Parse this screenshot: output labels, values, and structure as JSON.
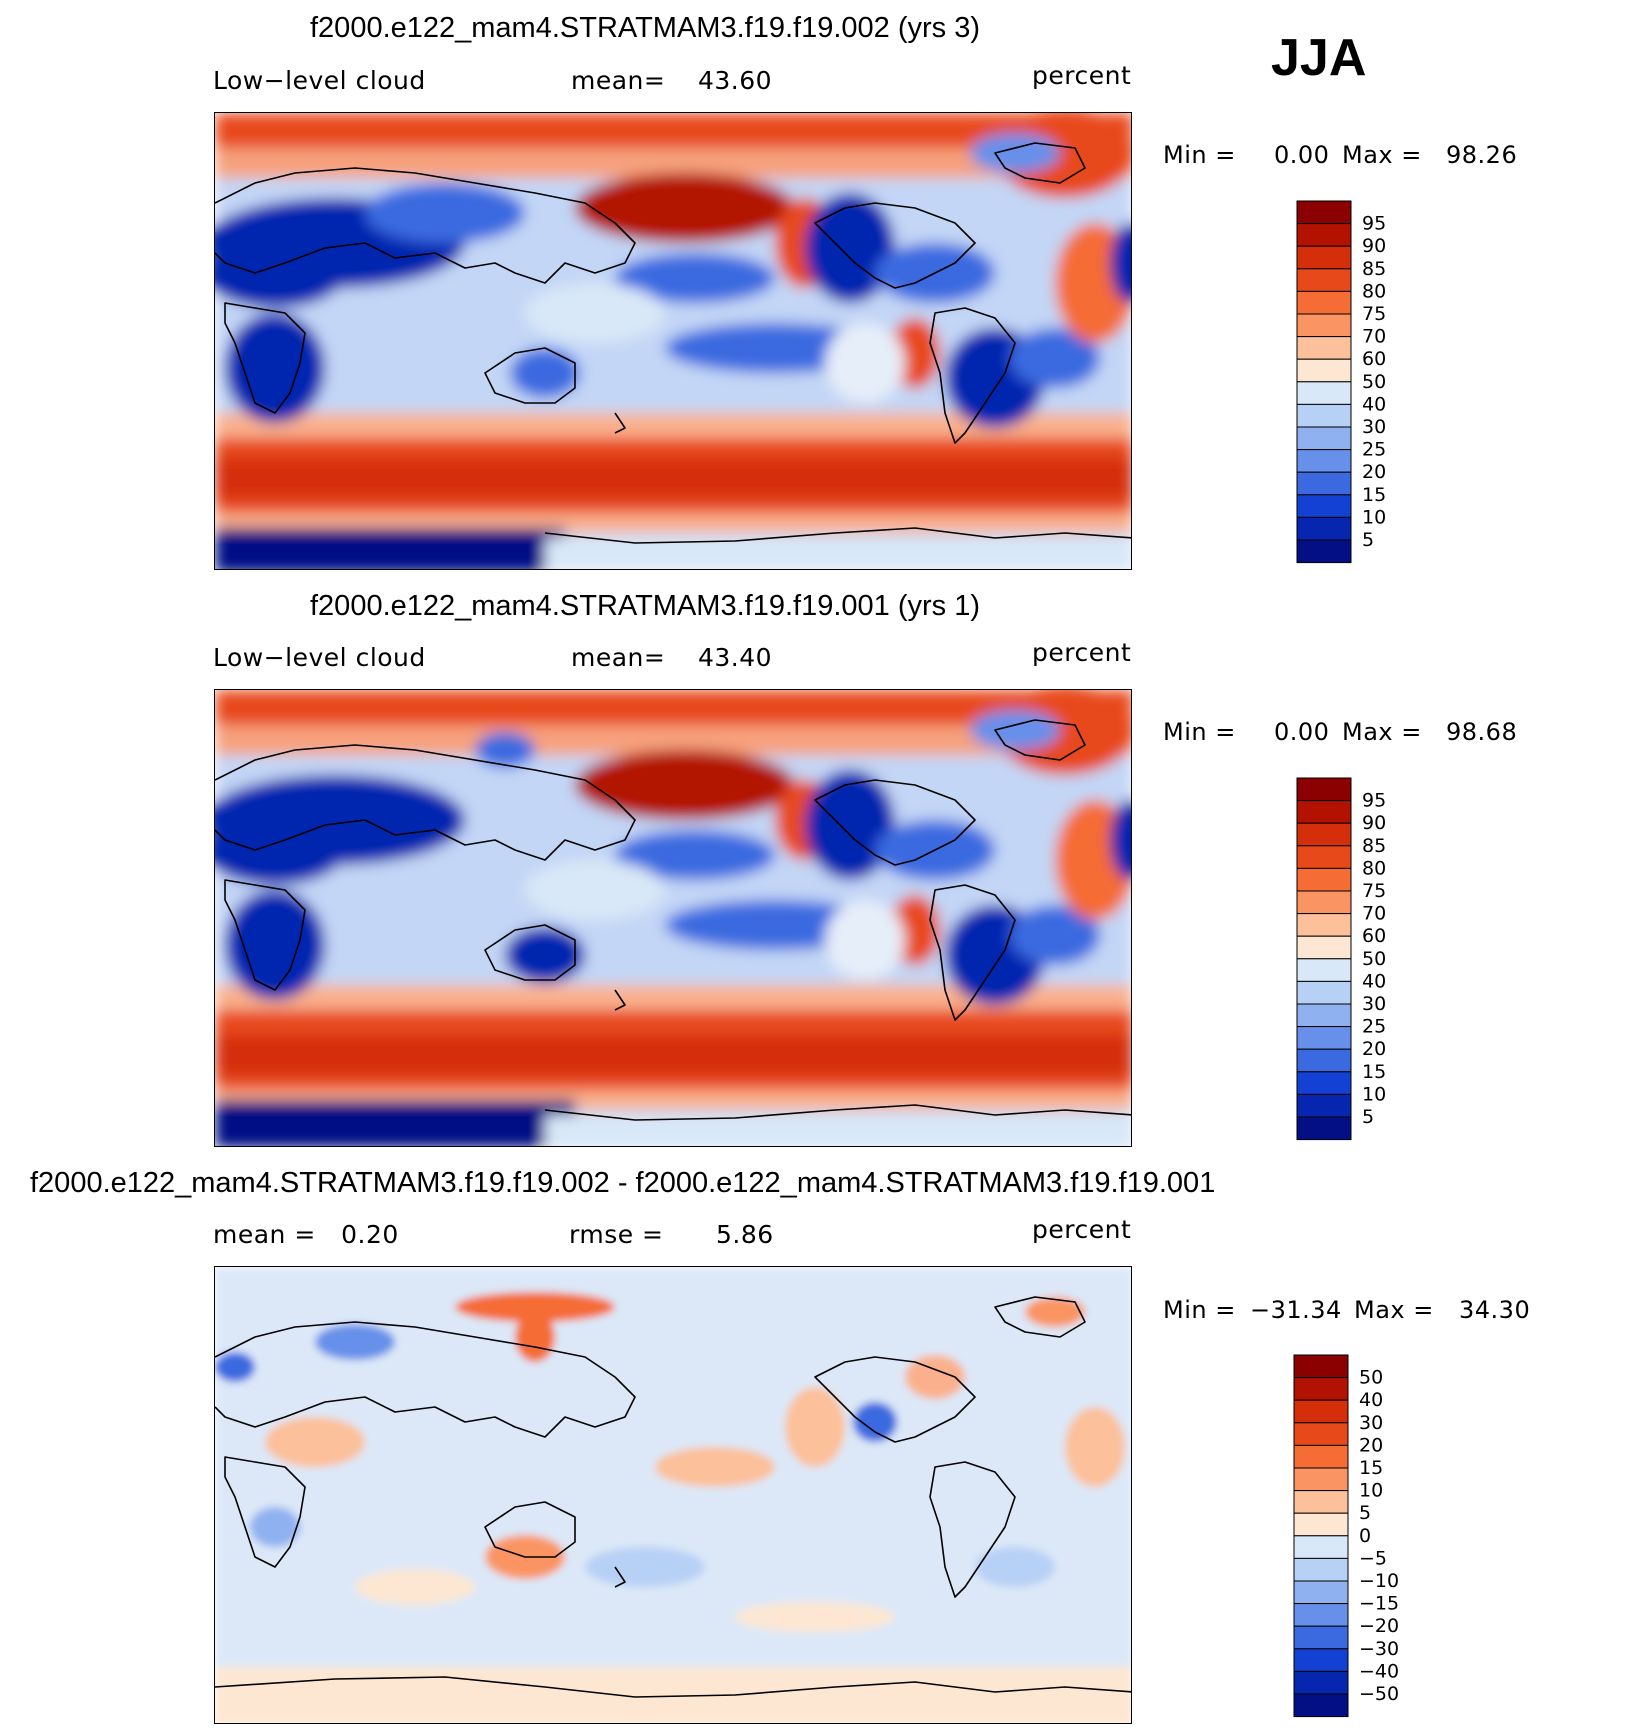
{
  "season": "JJA",
  "panels": [
    {
      "title": "f2000.e122_mam4.STRATMAM3.f19.f19.002 (yrs 3)",
      "left_text": "Low−level cloud",
      "mid_label": "mean=",
      "mid_value": "43.60",
      "units": "percent",
      "min_label": "Min =",
      "min_value": "0.00",
      "max_label": "Max =",
      "max_value": "98.26",
      "colorbar": {
        "labels": [
          "95",
          "90",
          "85",
          "80",
          "75",
          "70",
          "60",
          "50",
          "40",
          "30",
          "25",
          "20",
          "15",
          "10",
          "5"
        ],
        "colors": [
          "#8b0000",
          "#b31200",
          "#d42e0a",
          "#e8491a",
          "#f56c34",
          "#fa9462",
          "#fcc09a",
          "#fde7d2",
          "#d9e8f8",
          "#b7d0f5",
          "#8fb1f0",
          "#6690ea",
          "#3b6ae0",
          "#1341d3",
          "#0626b0",
          "#020f85"
        ]
      }
    },
    {
      "title": "f2000.e122_mam4.STRATMAM3.f19.f19.001 (yrs 1)",
      "left_text": "Low−level cloud",
      "mid_label": "mean=",
      "mid_value": "43.40",
      "units": "percent",
      "min_label": "Min =",
      "min_value": "0.00",
      "max_label": "Max =",
      "max_value": "98.68",
      "colorbar": {
        "labels": [
          "95",
          "90",
          "85",
          "80",
          "75",
          "70",
          "60",
          "50",
          "40",
          "30",
          "25",
          "20",
          "15",
          "10",
          "5"
        ],
        "colors": [
          "#8b0000",
          "#b31200",
          "#d42e0a",
          "#e8491a",
          "#f56c34",
          "#fa9462",
          "#fcc09a",
          "#fde7d2",
          "#d9e8f8",
          "#b7d0f5",
          "#8fb1f0",
          "#6690ea",
          "#3b6ae0",
          "#1341d3",
          "#0626b0",
          "#020f85"
        ]
      }
    },
    {
      "title": "f2000.e122_mam4.STRATMAM3.f19.f19.002 - f2000.e122_mam4.STRATMAM3.f19.f19.001",
      "left_text": "mean =   0.20",
      "mid_label": "rmse =",
      "mid_value": "5.86",
      "units": "percent",
      "min_label": "Min =",
      "min_value": "−31.34",
      "max_label": "Max =",
      "max_value": "34.30",
      "colorbar": {
        "labels": [
          "50",
          "40",
          "30",
          "20",
          "15",
          "10",
          "5",
          "0",
          "−5",
          "−10",
          "−15",
          "−20",
          "−30",
          "−40",
          "−50"
        ],
        "colors": [
          "#8b0000",
          "#b31200",
          "#d42e0a",
          "#e8491a",
          "#f56c34",
          "#fa9462",
          "#fcc09a",
          "#fde7d2",
          "#d9e8f8",
          "#b7d0f5",
          "#8fb1f0",
          "#6690ea",
          "#3b6ae0",
          "#1341d3",
          "#0626b0",
          "#020f85"
        ]
      }
    }
  ]
}
